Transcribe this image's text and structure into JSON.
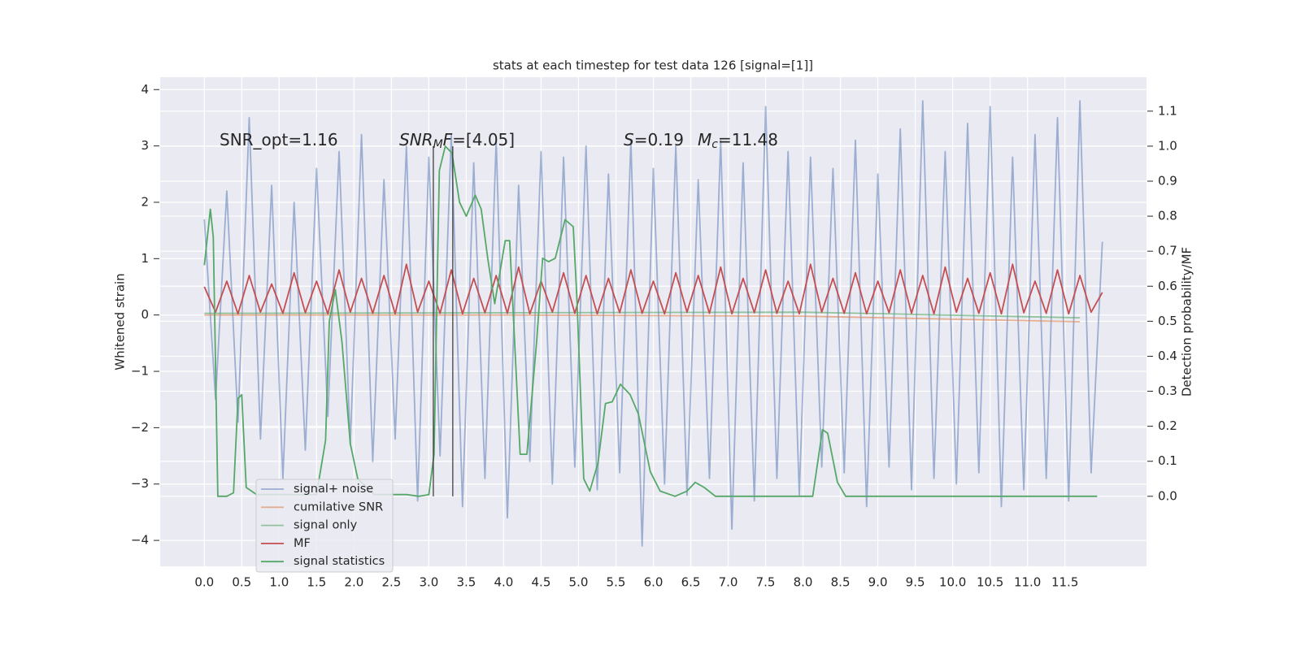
{
  "chart_data": {
    "type": "line",
    "title": "stats at each timestep for test data 126 [signal=[1]]",
    "ylabel": "Whitened strain",
    "y2label": "Detection probability/MF",
    "xlim": [
      -0.59,
      12.59
    ],
    "ylim": [
      -4.46,
      4.22
    ],
    "y2lim": [
      -0.2,
      1.197
    ],
    "grid": true,
    "legend": "lower left",
    "xticks": [
      {
        "value": 0,
        "label": "0.0"
      },
      0.5,
      {
        "value": 1,
        "label": "1.0"
      },
      1.5,
      {
        "value": 2,
        "label": "2.0"
      },
      2.5,
      {
        "value": 3,
        "label": "3.0"
      },
      3.5,
      {
        "value": 4,
        "label": "4.0"
      },
      4.5,
      {
        "value": 5,
        "label": "5.0"
      },
      5.5,
      {
        "value": 6,
        "label": "6.0"
      },
      6.5,
      {
        "value": 7,
        "label": "7.0"
      },
      7.5,
      {
        "value": 8,
        "label": "8.0"
      },
      8.5,
      {
        "value": 9,
        "label": "9.0"
      },
      9.5,
      {
        "value": 10,
        "label": "10.0"
      },
      10.5,
      {
        "value": 11,
        "label": "11.0"
      },
      11.5
    ],
    "yticks": [
      {
        "value": -4,
        "label": "−4"
      },
      {
        "value": -3,
        "label": "−3"
      },
      {
        "value": -2,
        "label": "−2"
      },
      {
        "value": -1,
        "label": "−1"
      },
      0,
      1,
      2,
      3,
      4
    ],
    "y2ticks": [
      {
        "value": 0,
        "label": "0.0"
      },
      0.1,
      0.2,
      0.3,
      0.4,
      0.5,
      0.6,
      0.7,
      0.8,
      0.9,
      {
        "value": 1,
        "label": "1.0"
      },
      1.1
    ],
    "annotations": [
      [
        "SNR_opt=1.16"
      ],
      [
        "SNR",
        "M",
        "F",
        "=[4.05]"
      ],
      [
        "S",
        "=0.19"
      ],
      [
        "M",
        "c",
        "=11.48"
      ]
    ],
    "vlines": {
      "x": [
        3.06,
        3.32
      ],
      "y2": [
        0,
        1
      ]
    },
    "x": [
      0,
      0.15,
      0.3,
      0.45,
      0.6,
      0.75,
      0.9,
      1.05,
      1.2,
      1.35,
      1.5,
      1.65,
      1.8,
      1.95,
      2.1,
      2.25,
      2.4,
      2.55,
      2.7,
      2.85,
      3.0,
      3.15,
      3.3,
      3.45,
      3.6,
      3.75,
      3.9,
      4.05,
      4.2,
      4.35,
      4.5,
      4.65,
      4.8,
      4.95,
      5.1,
      5.25,
      5.4,
      5.55,
      5.7,
      5.85,
      6.0,
      6.15,
      6.3,
      6.45,
      6.6,
      6.75,
      6.9,
      7.05,
      7.2,
      7.35,
      7.5,
      7.65,
      7.8,
      7.95,
      8.1,
      8.25,
      8.4,
      8.55,
      8.7,
      8.85,
      9.0,
      9.15,
      9.3,
      9.45,
      9.6,
      9.75,
      9.9,
      10.05,
      10.2,
      10.35,
      10.5,
      10.65,
      10.8,
      10.95,
      11.1,
      11.25,
      11.4,
      11.55,
      11.7,
      11.85,
      12.0
    ],
    "series": [
      {
        "name": "signal+ noise",
        "color": "#4c72b0",
        "alpha": 0.5,
        "values": [
          1.7,
          -1.5,
          2.2,
          -1.9,
          3.5,
          -2.2,
          2.3,
          -2.9,
          2.0,
          -2.4,
          2.6,
          -1.8,
          2.9,
          -2.3,
          3.2,
          -2.6,
          2.4,
          -2.2,
          3.0,
          -3.3,
          2.8,
          -2.5,
          3.2,
          -3.4,
          2.7,
          -2.9,
          3.1,
          -3.6,
          2.3,
          -2.6,
          2.9,
          -3.0,
          2.8,
          -2.7,
          3.0,
          -3.1,
          2.5,
          -2.8,
          3.1,
          -4.1,
          2.6,
          -3.0,
          3.0,
          -3.2,
          2.4,
          -2.9,
          3.1,
          -3.8,
          2.7,
          -3.3,
          3.7,
          -2.9,
          2.9,
          -3.2,
          2.8,
          -2.7,
          2.6,
          -2.8,
          3.1,
          -3.4,
          2.5,
          -2.7,
          3.3,
          -3.1,
          3.8,
          -2.9,
          2.9,
          -3.0,
          3.4,
          -2.8,
          3.7,
          -3.4,
          2.8,
          -3.1,
          3.2,
          -2.9,
          3.5,
          -3.3,
          3.8,
          -2.8,
          1.3
        ]
      },
      {
        "name": "cumilative SNR",
        "color": "#dd8452",
        "alpha": 0.6,
        "x": [
          0,
          4,
          8,
          11.7
        ],
        "values": [
          0,
          0,
          -0.02,
          -0.12
        ]
      },
      {
        "name": "signal only",
        "color": "#55a868",
        "alpha": 0.6,
        "x": [
          0,
          4,
          8,
          11.7
        ],
        "values": [
          0.03,
          0.04,
          0.05,
          -0.05
        ]
      },
      {
        "name": "MF",
        "color": "#c44e52",
        "alpha": 1,
        "values": [
          0.5,
          0.05,
          0.6,
          0.02,
          0.7,
          0.05,
          0.55,
          0.03,
          0.75,
          0.04,
          0.6,
          0.02,
          0.8,
          0.05,
          0.65,
          0.03,
          0.7,
          0.02,
          0.9,
          0.05,
          0.6,
          0.03,
          0.8,
          0.02,
          0.65,
          0.04,
          0.7,
          0.03,
          0.85,
          0.02,
          0.6,
          0.05,
          0.75,
          0.03,
          0.7,
          0.02,
          0.65,
          0.04,
          0.8,
          0.03,
          0.6,
          0.02,
          0.75,
          0.05,
          0.7,
          0.03,
          0.85,
          0.02,
          0.65,
          0.04,
          0.8,
          0.03,
          0.6,
          0.02,
          0.9,
          0.05,
          0.65,
          0.03,
          0.75,
          0.02,
          0.6,
          0.04,
          0.8,
          0.03,
          0.7,
          0.02,
          0.85,
          0.05,
          0.65,
          0.03,
          0.75,
          0.02,
          0.9,
          0.04,
          0.6,
          0.03,
          0.8,
          0.02,
          0.7,
          0.05,
          0.4
        ]
      },
      {
        "name": "signal statistics",
        "color": "#55a868",
        "alpha": 1,
        "axis": "y2",
        "x": [
          0,
          0.08,
          0.12,
          0.18,
          0.3,
          0.39,
          0.45,
          0.5,
          0.56,
          0.7,
          0.97,
          1.5,
          1.62,
          1.67,
          1.75,
          1.84,
          1.95,
          2.05,
          2.27,
          2.7,
          2.87,
          3.0,
          3.07,
          3.14,
          3.22,
          3.31,
          3.41,
          3.5,
          3.62,
          3.7,
          3.79,
          3.88,
          4.02,
          4.08,
          4.22,
          4.31,
          4.44,
          4.52,
          4.6,
          4.69,
          4.82,
          4.93,
          4.98,
          5.07,
          5.15,
          5.26,
          5.36,
          5.45,
          5.56,
          5.69,
          5.8,
          5.96,
          6.09,
          6.29,
          6.45,
          6.56,
          6.68,
          6.83,
          7.7,
          8.13,
          8.26,
          8.33,
          8.46,
          8.57,
          9.22,
          11.93
        ],
        "values": [
          0.66,
          0.82,
          0.74,
          0.0,
          0.0,
          0.01,
          0.28,
          0.29,
          0.025,
          0.005,
          0.005,
          0.005,
          0.16,
          0.5,
          0.59,
          0.44,
          0.15,
          0.05,
          0.005,
          0.005,
          0.0,
          0.005,
          0.12,
          0.93,
          1.0,
          0.98,
          0.84,
          0.8,
          0.86,
          0.82,
          0.675,
          0.55,
          0.73,
          0.73,
          0.12,
          0.12,
          0.44,
          0.68,
          0.67,
          0.68,
          0.79,
          0.77,
          0.56,
          0.05,
          0.015,
          0.095,
          0.265,
          0.27,
          0.32,
          0.29,
          0.235,
          0.07,
          0.015,
          0.0,
          0.015,
          0.04,
          0.025,
          0.0,
          0.0,
          0.0,
          0.19,
          0.18,
          0.04,
          0.0,
          0.0,
          0.0
        ]
      }
    ]
  }
}
